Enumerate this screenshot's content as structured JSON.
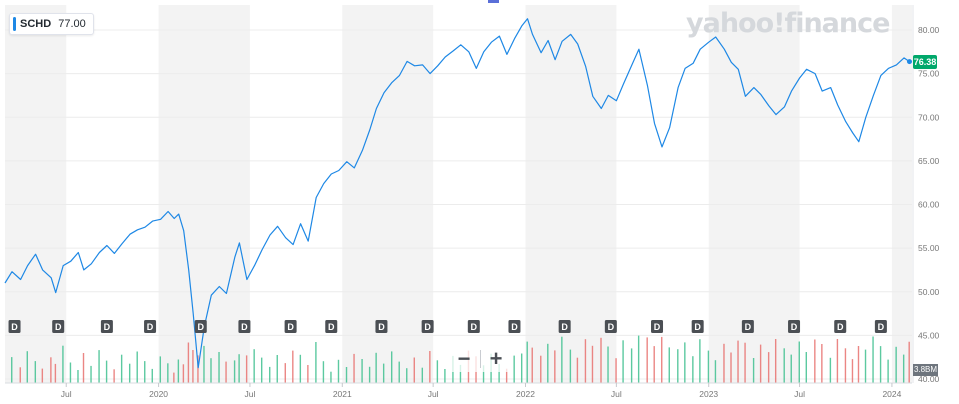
{
  "header": {
    "symbol": "SCHD",
    "legend_value": "77.00",
    "watermark": "yahoo!finance"
  },
  "zoom": {
    "minus_label": "−",
    "plus_label": "+"
  },
  "colors": {
    "line": "#1e88e5",
    "up_volume": "#3fbf8f",
    "down_volume": "#e8716f",
    "shade": "#f3f3f3",
    "dividend_marker": "#4b4f54",
    "last_price_tag": "#00a86b"
  },
  "chart_data": {
    "type": "line",
    "title": "",
    "xlabel": "",
    "ylabel": "",
    "ylim": [
      40,
      82
    ],
    "y_ticks": [
      "80.00",
      "75.00",
      "70.00",
      "65.00",
      "60.00",
      "55.00",
      "50.00",
      "45.00",
      "40.00"
    ],
    "x_ticks": [
      {
        "label": "Jul",
        "date": "2019-07-01"
      },
      {
        "label": "2020",
        "date": "2020-01-01"
      },
      {
        "label": "Jul",
        "date": "2020-07-01"
      },
      {
        "label": "2021",
        "date": "2021-01-01"
      },
      {
        "label": "Jul",
        "date": "2021-07-01"
      },
      {
        "label": "2022",
        "date": "2022-01-01"
      },
      {
        "label": "Jul",
        "date": "2022-07-01"
      },
      {
        "label": "2023",
        "date": "2023-01-01"
      },
      {
        "label": "Jul",
        "date": "2023-07-01"
      },
      {
        "label": "2024",
        "date": "2024-01-01"
      }
    ],
    "x_range": [
      "2019-03-01",
      "2024-02-10"
    ],
    "last_price_label": "76.38",
    "volume_label": "3.8BM",
    "series": [
      {
        "values": [
          [
            "2019-03-01",
            51.0
          ],
          [
            "2019-03-15",
            52.3
          ],
          [
            "2019-04-01",
            51.4
          ],
          [
            "2019-04-15",
            53.0
          ],
          [
            "2019-05-01",
            54.3
          ],
          [
            "2019-05-15",
            52.5
          ],
          [
            "2019-06-01",
            51.6
          ],
          [
            "2019-06-10",
            49.9
          ],
          [
            "2019-06-25",
            53.0
          ],
          [
            "2019-07-10",
            53.5
          ],
          [
            "2019-07-25",
            54.5
          ],
          [
            "2019-08-05",
            52.5
          ],
          [
            "2019-08-20",
            53.2
          ],
          [
            "2019-09-05",
            54.5
          ],
          [
            "2019-09-20",
            55.3
          ],
          [
            "2019-10-05",
            54.4
          ],
          [
            "2019-10-20",
            55.5
          ],
          [
            "2019-11-05",
            56.6
          ],
          [
            "2019-11-20",
            57.1
          ],
          [
            "2019-12-05",
            57.4
          ],
          [
            "2019-12-20",
            58.1
          ],
          [
            "2020-01-05",
            58.3
          ],
          [
            "2020-01-20",
            59.2
          ],
          [
            "2020-02-01",
            58.4
          ],
          [
            "2020-02-10",
            58.9
          ],
          [
            "2020-02-20",
            57.0
          ],
          [
            "2020-03-01",
            52.5
          ],
          [
            "2020-03-10",
            47.5
          ],
          [
            "2020-03-20",
            41.3
          ],
          [
            "2020-04-01",
            46.0
          ],
          [
            "2020-04-15",
            49.6
          ],
          [
            "2020-05-01",
            50.6
          ],
          [
            "2020-05-15",
            49.8
          ],
          [
            "2020-06-01",
            54.0
          ],
          [
            "2020-06-10",
            55.6
          ],
          [
            "2020-06-25",
            51.4
          ],
          [
            "2020-07-10",
            53.0
          ],
          [
            "2020-07-25",
            54.8
          ],
          [
            "2020-08-10",
            56.5
          ],
          [
            "2020-08-25",
            57.5
          ],
          [
            "2020-09-10",
            56.2
          ],
          [
            "2020-09-25",
            55.4
          ],
          [
            "2020-10-10",
            57.8
          ],
          [
            "2020-10-25",
            55.8
          ],
          [
            "2020-11-10",
            60.8
          ],
          [
            "2020-11-25",
            62.4
          ],
          [
            "2020-12-10",
            63.5
          ],
          [
            "2020-12-25",
            63.9
          ],
          [
            "2021-01-10",
            64.9
          ],
          [
            "2021-01-25",
            64.2
          ],
          [
            "2021-02-10",
            66.2
          ],
          [
            "2021-02-25",
            68.6
          ],
          [
            "2021-03-10",
            71.0
          ],
          [
            "2021-03-25",
            72.8
          ],
          [
            "2021-04-10",
            74.0
          ],
          [
            "2021-04-25",
            74.8
          ],
          [
            "2021-05-10",
            76.4
          ],
          [
            "2021-05-25",
            75.9
          ],
          [
            "2021-06-10",
            76.0
          ],
          [
            "2021-06-25",
            75.0
          ],
          [
            "2021-07-10",
            75.9
          ],
          [
            "2021-07-25",
            76.9
          ],
          [
            "2021-08-10",
            77.6
          ],
          [
            "2021-08-25",
            78.3
          ],
          [
            "2021-09-10",
            77.5
          ],
          [
            "2021-09-25",
            75.6
          ],
          [
            "2021-10-10",
            77.5
          ],
          [
            "2021-10-25",
            78.6
          ],
          [
            "2021-11-10",
            79.3
          ],
          [
            "2021-11-25",
            77.2
          ],
          [
            "2021-12-10",
            79.0
          ],
          [
            "2021-12-25",
            80.5
          ],
          [
            "2022-01-05",
            81.3
          ],
          [
            "2022-01-15",
            79.5
          ],
          [
            "2022-02-01",
            77.4
          ],
          [
            "2022-02-15",
            78.8
          ],
          [
            "2022-03-01",
            76.6
          ],
          [
            "2022-03-15",
            78.7
          ],
          [
            "2022-04-01",
            79.5
          ],
          [
            "2022-04-15",
            78.4
          ],
          [
            "2022-05-01",
            75.8
          ],
          [
            "2022-05-15",
            72.4
          ],
          [
            "2022-06-01",
            71.0
          ],
          [
            "2022-06-15",
            72.5
          ],
          [
            "2022-07-01",
            71.9
          ],
          [
            "2022-07-15",
            73.8
          ],
          [
            "2022-08-01",
            76.0
          ],
          [
            "2022-08-15",
            77.8
          ],
          [
            "2022-09-01",
            73.6
          ],
          [
            "2022-09-15",
            69.3
          ],
          [
            "2022-09-30",
            66.6
          ],
          [
            "2022-10-15",
            68.8
          ],
          [
            "2022-11-01",
            73.4
          ],
          [
            "2022-11-15",
            75.6
          ],
          [
            "2022-12-01",
            76.2
          ],
          [
            "2022-12-15",
            77.8
          ],
          [
            "2023-01-01",
            78.6
          ],
          [
            "2023-01-15",
            79.2
          ],
          [
            "2023-02-01",
            77.8
          ],
          [
            "2023-02-15",
            76.3
          ],
          [
            "2023-03-01",
            75.5
          ],
          [
            "2023-03-15",
            72.4
          ],
          [
            "2023-04-01",
            73.4
          ],
          [
            "2023-04-15",
            72.6
          ],
          [
            "2023-05-01",
            71.3
          ],
          [
            "2023-05-15",
            70.3
          ],
          [
            "2023-06-01",
            71.2
          ],
          [
            "2023-06-15",
            73.0
          ],
          [
            "2023-07-01",
            74.5
          ],
          [
            "2023-07-15",
            75.5
          ],
          [
            "2023-08-01",
            75.0
          ],
          [
            "2023-08-15",
            73.0
          ],
          [
            "2023-09-01",
            73.4
          ],
          [
            "2023-09-15",
            71.4
          ],
          [
            "2023-10-01",
            69.5
          ],
          [
            "2023-10-15",
            68.2
          ],
          [
            "2023-10-27",
            67.2
          ],
          [
            "2023-11-10",
            70.0
          ],
          [
            "2023-11-25",
            72.5
          ],
          [
            "2023-12-10",
            74.8
          ],
          [
            "2023-12-25",
            75.6
          ],
          [
            "2024-01-10",
            76.0
          ],
          [
            "2024-01-25",
            76.8
          ],
          [
            "2024-02-05",
            76.38
          ]
        ]
      }
    ],
    "dividend_markers": {
      "label": "D",
      "dates": [
        "2019-03-20",
        "2019-06-15",
        "2019-09-20",
        "2019-12-15",
        "2020-03-25",
        "2020-06-20",
        "2020-09-20",
        "2020-12-10",
        "2021-03-20",
        "2021-06-20",
        "2021-09-20",
        "2021-12-10",
        "2022-03-20",
        "2022-06-20",
        "2022-09-20",
        "2022-12-10",
        "2023-03-20",
        "2023-06-20",
        "2023-09-20",
        "2023-12-10"
      ]
    },
    "shaded_half_years": [
      [
        "2019-03-01",
        "2019-07-01"
      ],
      [
        "2020-01-01",
        "2020-07-01"
      ],
      [
        "2021-01-01",
        "2021-07-01"
      ],
      [
        "2022-01-01",
        "2022-07-01"
      ],
      [
        "2023-01-01",
        "2023-07-01"
      ],
      [
        "2024-01-01",
        "2024-02-10"
      ]
    ]
  }
}
